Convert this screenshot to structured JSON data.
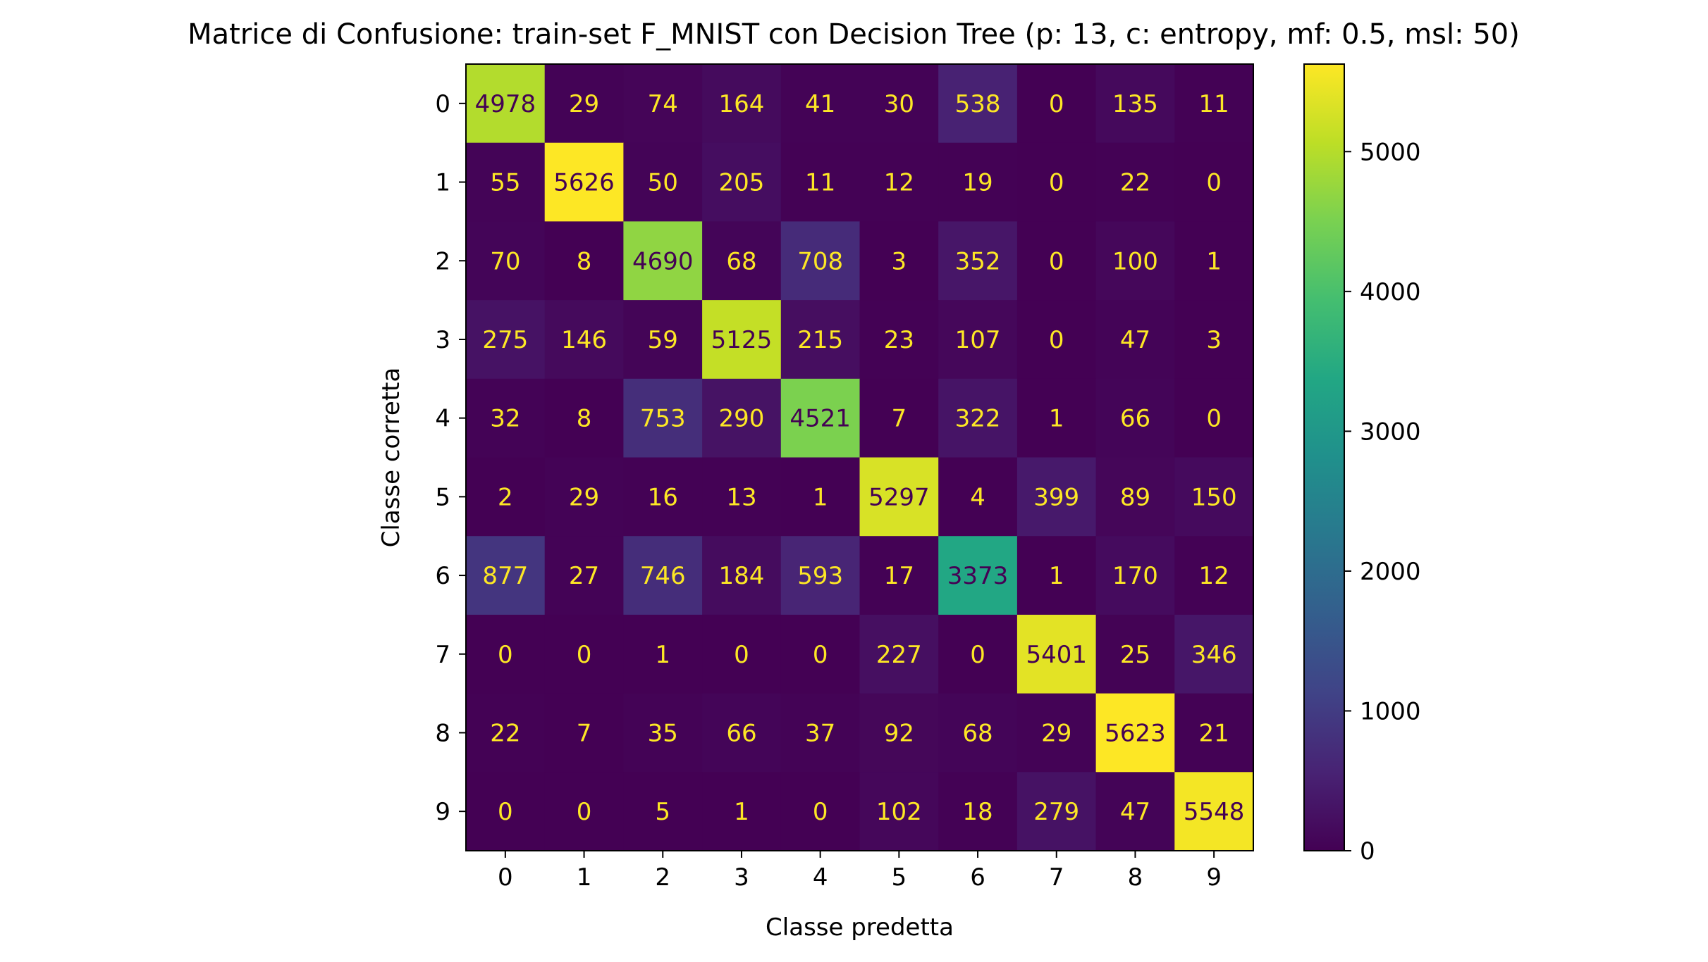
{
  "chart_data": {
    "type": "heatmap",
    "title": "Matrice di Confusione: train-set F_MNIST con Decision Tree (p: 13, c: entropy, mf: 0.5, msl: 50)",
    "xlabel": "Classe predetta",
    "ylabel": "Classe corretta",
    "x_categories": [
      "0",
      "1",
      "2",
      "3",
      "4",
      "5",
      "6",
      "7",
      "8",
      "9"
    ],
    "y_categories": [
      "0",
      "1",
      "2",
      "3",
      "4",
      "5",
      "6",
      "7",
      "8",
      "9"
    ],
    "matrix": [
      [
        4978,
        29,
        74,
        164,
        41,
        30,
        538,
        0,
        135,
        11
      ],
      [
        55,
        5626,
        50,
        205,
        11,
        12,
        19,
        0,
        22,
        0
      ],
      [
        70,
        8,
        4690,
        68,
        708,
        3,
        352,
        0,
        100,
        1
      ],
      [
        275,
        146,
        59,
        5125,
        215,
        23,
        107,
        0,
        47,
        3
      ],
      [
        32,
        8,
        753,
        290,
        4521,
        7,
        322,
        1,
        66,
        0
      ],
      [
        2,
        29,
        16,
        13,
        1,
        5297,
        4,
        399,
        89,
        150
      ],
      [
        877,
        27,
        746,
        184,
        593,
        17,
        3373,
        1,
        170,
        12
      ],
      [
        0,
        0,
        1,
        0,
        0,
        227,
        0,
        5401,
        25,
        346
      ],
      [
        22,
        7,
        35,
        66,
        37,
        92,
        68,
        29,
        5623,
        21
      ],
      [
        0,
        0,
        5,
        1,
        0,
        102,
        18,
        279,
        47,
        5548
      ]
    ],
    "colormap": "viridis",
    "colorbar": {
      "range": [
        0,
        5626
      ],
      "ticks": [
        0,
        1000,
        2000,
        3000,
        4000,
        5000
      ]
    },
    "grid": false
  }
}
